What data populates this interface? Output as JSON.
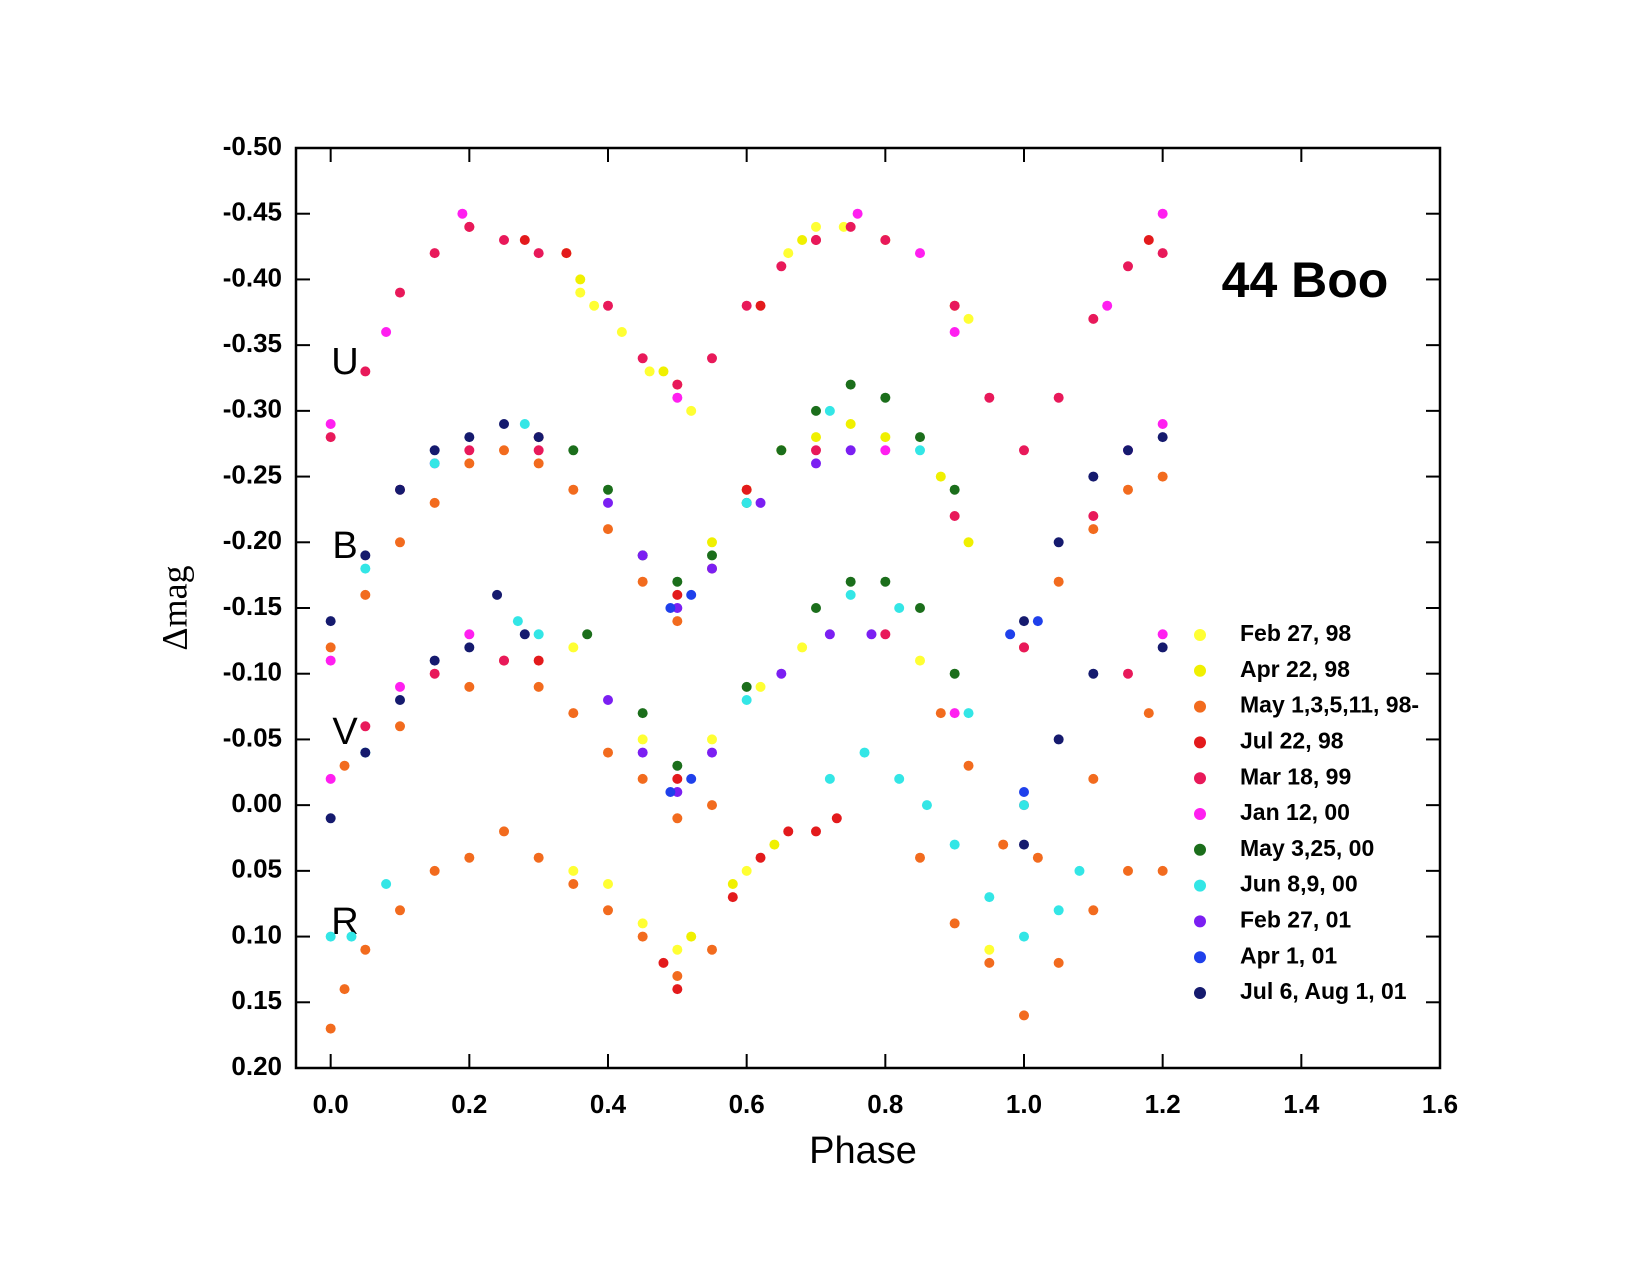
{
  "chart_data": {
    "type": "scatter",
    "title": "44 Boo",
    "x_label": "Phase",
    "y_label": "Δmag",
    "annotations": [
      "U",
      "B",
      "V",
      "R"
    ],
    "xlim": [
      -0.05,
      1.6
    ],
    "ylim": [
      -0.5,
      0.2
    ],
    "invert_y": true,
    "legend": "right",
    "xticks": [
      {
        "value": 0,
        "label": "0.0"
      },
      0.2,
      0.4,
      0.6,
      0.8,
      {
        "value": 1,
        "label": "1.0"
      },
      1.2,
      1.4,
      1.6
    ],
    "yticks": [
      {
        "value": -0.5,
        "label": "-0.50"
      },
      -0.45,
      {
        "value": -0.4,
        "label": "-0.40"
      },
      -0.35,
      {
        "value": -0.3,
        "label": "-0.30"
      },
      -0.25,
      {
        "value": -0.2,
        "label": "-0.20"
      },
      -0.15,
      {
        "value": -0.1,
        "label": "-0.10"
      },
      -0.05,
      {
        "value": 0,
        "label": "0.00"
      },
      0.05,
      {
        "value": 0.1,
        "label": "0.10"
      },
      0.15,
      {
        "value": 0.2,
        "label": "0.20"
      }
    ],
    "series": [
      {
        "name": "Feb 27, 98",
        "color": "#ffff33",
        "x": [
          0.34,
          0.36,
          0.38,
          0.42,
          0.46,
          0.5,
          0.52,
          0.66,
          0.7,
          0.74,
          0.8,
          0.92,
          0.35,
          0.45,
          0.55,
          0.62,
          0.68,
          0.85,
          0.35,
          0.4,
          0.45,
          0.5,
          0.6,
          0.95
        ],
        "values": [
          -0.42,
          -0.39,
          -0.38,
          -0.36,
          -0.33,
          -0.32,
          -0.3,
          -0.42,
          -0.44,
          -0.44,
          -0.43,
          -0.37,
          -0.12,
          -0.05,
          -0.05,
          -0.09,
          -0.12,
          -0.11,
          0.05,
          0.06,
          0.09,
          0.11,
          0.05,
          0.11
        ]
      },
      {
        "name": "Apr 22, 98",
        "color": "#f0f000",
        "x": [
          0.55,
          0.6,
          0.65,
          0.7,
          0.75,
          0.8,
          0.88,
          0.92,
          0.36,
          0.48,
          0.68,
          0.9,
          0.52,
          0.58,
          0.64
        ],
        "values": [
          -0.2,
          -0.24,
          -0.27,
          -0.28,
          -0.29,
          -0.28,
          -0.25,
          -0.2,
          -0.4,
          -0.33,
          -0.43,
          -0.38,
          0.1,
          0.06,
          0.03
        ]
      },
      {
        "name": "May 1,3,5,11, 98-",
        "color": "#f26b1e",
        "x": [
          0,
          0.05,
          0.1,
          0.15,
          0.2,
          0.25,
          0.3,
          0.35,
          0.4,
          0.45,
          0.5,
          0.55,
          1,
          1.05,
          1.1,
          1.15,
          1.2,
          0.02,
          0.1,
          0.2,
          0.25,
          0.3,
          0.35,
          0.4,
          0.45,
          0.5,
          0.55,
          0.88,
          0.92,
          0.97,
          1.02,
          1.1,
          1.18,
          0,
          0.02,
          0.05,
          0.1,
          0.15,
          0.2,
          0.25,
          0.3,
          0.35,
          0.4,
          0.45,
          0.5,
          0.55,
          0.85,
          0.9,
          0.95,
          1,
          1.05,
          1.1,
          1.15,
          1.2
        ],
        "values": [
          -0.12,
          -0.16,
          -0.2,
          -0.23,
          -0.26,
          -0.27,
          -0.26,
          -0.24,
          -0.21,
          -0.17,
          -0.14,
          -0.18,
          -0.12,
          -0.17,
          -0.21,
          -0.24,
          -0.25,
          -0.03,
          -0.06,
          -0.09,
          -0.11,
          -0.09,
          -0.07,
          -0.04,
          -0.02,
          0.01,
          0,
          -0.07,
          -0.03,
          0.03,
          0.04,
          -0.02,
          -0.07,
          0.17,
          0.14,
          0.11,
          0.08,
          0.05,
          0.04,
          0.02,
          0.04,
          0.06,
          0.08,
          0.1,
          0.13,
          0.11,
          0.04,
          0.09,
          0.12,
          0.16,
          0.12,
          0.08,
          0.05,
          0.05
        ]
      },
      {
        "name": "Jul 22, 98",
        "color": "#e31a1c",
        "x": [
          0.2,
          0.28,
          0.34,
          0.62,
          0.7,
          1.18,
          0.3,
          0.5,
          0.6,
          0.3,
          0.5,
          0.48,
          0.5,
          0.58,
          0.62,
          0.66,
          0.7,
          0.73
        ],
        "values": [
          -0.44,
          -0.43,
          -0.42,
          -0.38,
          -0.43,
          -0.43,
          -0.28,
          -0.16,
          -0.24,
          -0.11,
          -0.02,
          0.12,
          0.14,
          0.07,
          0.04,
          0.02,
          0.02,
          0.01
        ]
      },
      {
        "name": "Mar 18, 99",
        "color": "#e8195a",
        "x": [
          0,
          0.05,
          0.1,
          0.15,
          0.2,
          0.25,
          0.3,
          0.4,
          0.45,
          0.5,
          0.55,
          0.6,
          0.65,
          0.7,
          0.75,
          0.8,
          0.9,
          0.95,
          1,
          1.05,
          1.1,
          1.15,
          1.2,
          0.1,
          0.2,
          0.3,
          0.7,
          0.9,
          1,
          1.1,
          0.05,
          0.15,
          0.25,
          0.8,
          1,
          1.15
        ],
        "values": [
          -0.28,
          -0.33,
          -0.39,
          -0.42,
          -0.44,
          -0.43,
          -0.42,
          -0.38,
          -0.34,
          -0.32,
          -0.34,
          -0.38,
          -0.41,
          -0.43,
          -0.44,
          -0.43,
          -0.38,
          -0.31,
          -0.27,
          -0.31,
          -0.37,
          -0.41,
          -0.42,
          -0.24,
          -0.27,
          -0.27,
          -0.27,
          -0.22,
          -0.12,
          -0.22,
          -0.06,
          -0.1,
          -0.11,
          -0.13,
          0,
          -0.1
        ]
      },
      {
        "name": "Jan 12, 00",
        "color": "#ff1ff0",
        "x": [
          0,
          0.08,
          0.19,
          0.5,
          0.76,
          0.85,
          0.9,
          1.12,
          1.2,
          0,
          0.15,
          0.8,
          1.15,
          1.2,
          0,
          0.1,
          0.2,
          0.9,
          1.2
        ],
        "values": [
          -0.29,
          -0.36,
          -0.45,
          -0.31,
          -0.45,
          -0.42,
          -0.36,
          -0.38,
          -0.45,
          -0.11,
          -0.26,
          -0.27,
          -0.27,
          -0.29,
          -0.02,
          -0.09,
          -0.13,
          -0.07,
          -0.13
        ]
      },
      {
        "name": "May 3,25, 00",
        "color": "#1b6e1b",
        "x": [
          0.35,
          0.4,
          0.45,
          0.5,
          0.55,
          0.6,
          0.65,
          0.7,
          0.75,
          0.8,
          0.85,
          0.9,
          0.37,
          0.45,
          0.5,
          0.6,
          0.7,
          0.75,
          0.8,
          0.85,
          0.9
        ],
        "values": [
          -0.27,
          -0.24,
          -0.19,
          -0.17,
          -0.19,
          -0.23,
          -0.27,
          -0.3,
          -0.32,
          -0.31,
          -0.28,
          -0.24,
          -0.13,
          -0.07,
          -0.03,
          -0.09,
          -0.15,
          -0.17,
          -0.17,
          -0.15,
          -0.1
        ]
      },
      {
        "name": "Jun 8,9, 00",
        "color": "#33e6e6",
        "x": [
          0.05,
          0.15,
          0.28,
          0.6,
          0.72,
          0.85,
          0.05,
          0.27,
          0.3,
          0.6,
          0.75,
          0.82,
          0.92,
          1,
          0,
          0.03,
          0.08,
          0.72,
          0.77,
          0.82,
          0.86,
          0.9,
          0.95,
          1,
          1.05,
          1.08
        ],
        "values": [
          -0.18,
          -0.26,
          -0.29,
          -0.23,
          -0.3,
          -0.27,
          -0.04,
          -0.14,
          -0.13,
          -0.08,
          -0.16,
          -0.15,
          -0.07,
          0,
          0.1,
          0.1,
          0.06,
          -0.02,
          -0.04,
          -0.02,
          0,
          0.03,
          0.07,
          0.1,
          0.08,
          0.05
        ]
      },
      {
        "name": "Feb 27, 01",
        "color": "#7b1ff2",
        "x": [
          0.4,
          0.45,
          0.5,
          0.55,
          0.62,
          0.7,
          0.75,
          0.4,
          0.45,
          0.5,
          0.55,
          0.65,
          0.72,
          0.78
        ],
        "values": [
          -0.23,
          -0.19,
          -0.15,
          -0.18,
          -0.23,
          -0.26,
          -0.27,
          -0.08,
          -0.04,
          -0.01,
          -0.04,
          -0.1,
          -0.13,
          -0.13
        ]
      },
      {
        "name": "Apr 1, 01",
        "color": "#1f40eb",
        "x": [
          0.49,
          0.52,
          0.98,
          1.02,
          0.49,
          0.52,
          1
        ],
        "values": [
          -0.15,
          -0.16,
          -0.13,
          -0.14,
          -0.01,
          -0.02,
          -0.01
        ]
      },
      {
        "name": "Jul 6, Aug 1, 01",
        "color": "#151a6e",
        "x": [
          0,
          0.05,
          0.1,
          0.15,
          0.2,
          0.25,
          0.3,
          1,
          1.05,
          1.1,
          1.15,
          1.2,
          0,
          0.05,
          0.1,
          0.15,
          0.2,
          0.24,
          0.28,
          1,
          1.05,
          1.1,
          1.2
        ],
        "values": [
          -0.14,
          -0.19,
          -0.24,
          -0.27,
          -0.28,
          -0.29,
          -0.28,
          -0.14,
          -0.2,
          -0.25,
          -0.27,
          -0.28,
          0.01,
          -0.04,
          -0.08,
          -0.11,
          -0.12,
          -0.16,
          -0.13,
          0.03,
          -0.05,
          -0.1,
          -0.12
        ]
      }
    ]
  }
}
